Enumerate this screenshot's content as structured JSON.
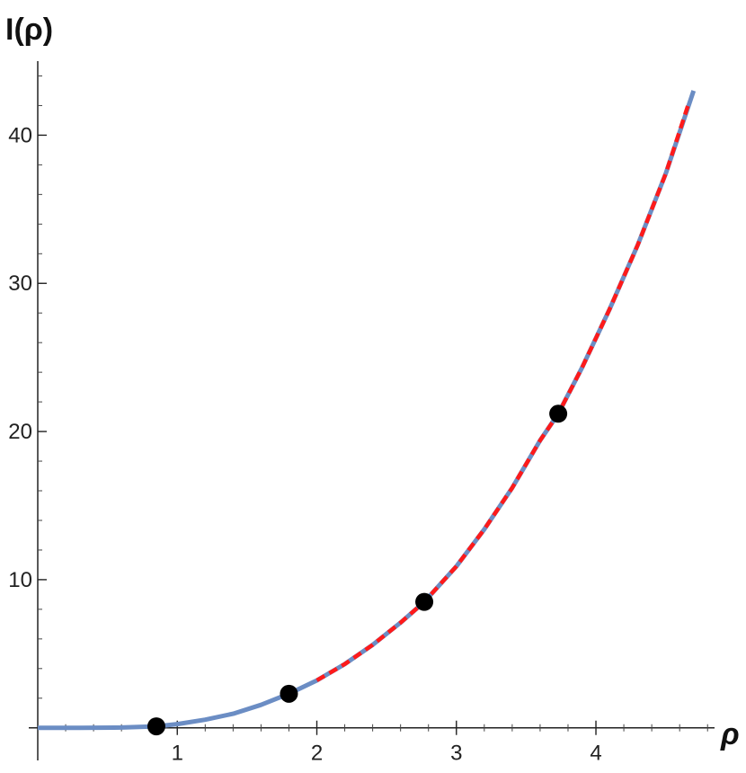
{
  "chart_data": {
    "type": "line",
    "title": "",
    "xlabel": "ρ",
    "ylabel": "I(ρ)",
    "xlim": [
      0,
      4.85
    ],
    "ylim": [
      -2.2,
      45
    ],
    "x_ticks": [
      1,
      2,
      3,
      4
    ],
    "y_ticks": [
      10,
      20,
      30,
      40
    ],
    "x_tick_labels": [
      "1",
      "2",
      "3",
      "4"
    ],
    "y_tick_labels": [
      "10",
      "20",
      "30",
      "40"
    ],
    "grid": false,
    "legend": "none",
    "series": [
      {
        "style": "solid",
        "color": "#6b8dc4",
        "x": [
          0,
          0.3,
          0.6,
          0.85,
          1.0,
          1.2,
          1.4,
          1.6,
          1.8,
          2.0,
          2.2,
          2.4,
          2.6,
          2.77,
          3.0,
          3.2,
          3.4,
          3.6,
          3.73,
          3.9,
          4.1,
          4.3,
          4.5,
          4.7
        ],
        "y": [
          0,
          0.0,
          0.02,
          0.1,
          0.25,
          0.55,
          0.95,
          1.55,
          2.3,
          3.2,
          4.3,
          5.6,
          7.1,
          8.5,
          10.9,
          13.4,
          16.2,
          19.4,
          21.2,
          24.3,
          28.3,
          32.6,
          37.4,
          43.0
        ]
      },
      {
        "style": "dashed",
        "color": "#ff1a1a",
        "x": [
          2.0,
          2.2,
          2.4,
          2.6,
          2.77,
          3.0,
          3.2,
          3.4,
          3.6,
          3.73,
          3.9,
          4.1,
          4.3,
          4.5,
          4.67
        ],
        "y": [
          3.2,
          4.3,
          5.6,
          7.1,
          8.5,
          10.9,
          13.4,
          16.2,
          19.4,
          21.2,
          24.3,
          28.3,
          32.6,
          37.4,
          42.3
        ]
      }
    ],
    "points": {
      "color": "#000000",
      "x": [
        0.85,
        1.8,
        2.77,
        3.73
      ],
      "y": [
        0.1,
        2.3,
        8.5,
        21.2
      ]
    }
  }
}
